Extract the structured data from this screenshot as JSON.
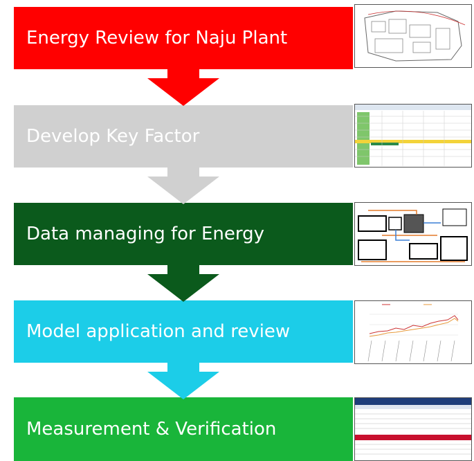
{
  "steps": [
    {
      "label": "Energy Review for Naju Plant"
    },
    {
      "label": "Develop Key Factor"
    },
    {
      "label": "Data managing for Energy"
    },
    {
      "label": "Model application and review"
    },
    {
      "label": "Measurement & Verification"
    }
  ]
}
